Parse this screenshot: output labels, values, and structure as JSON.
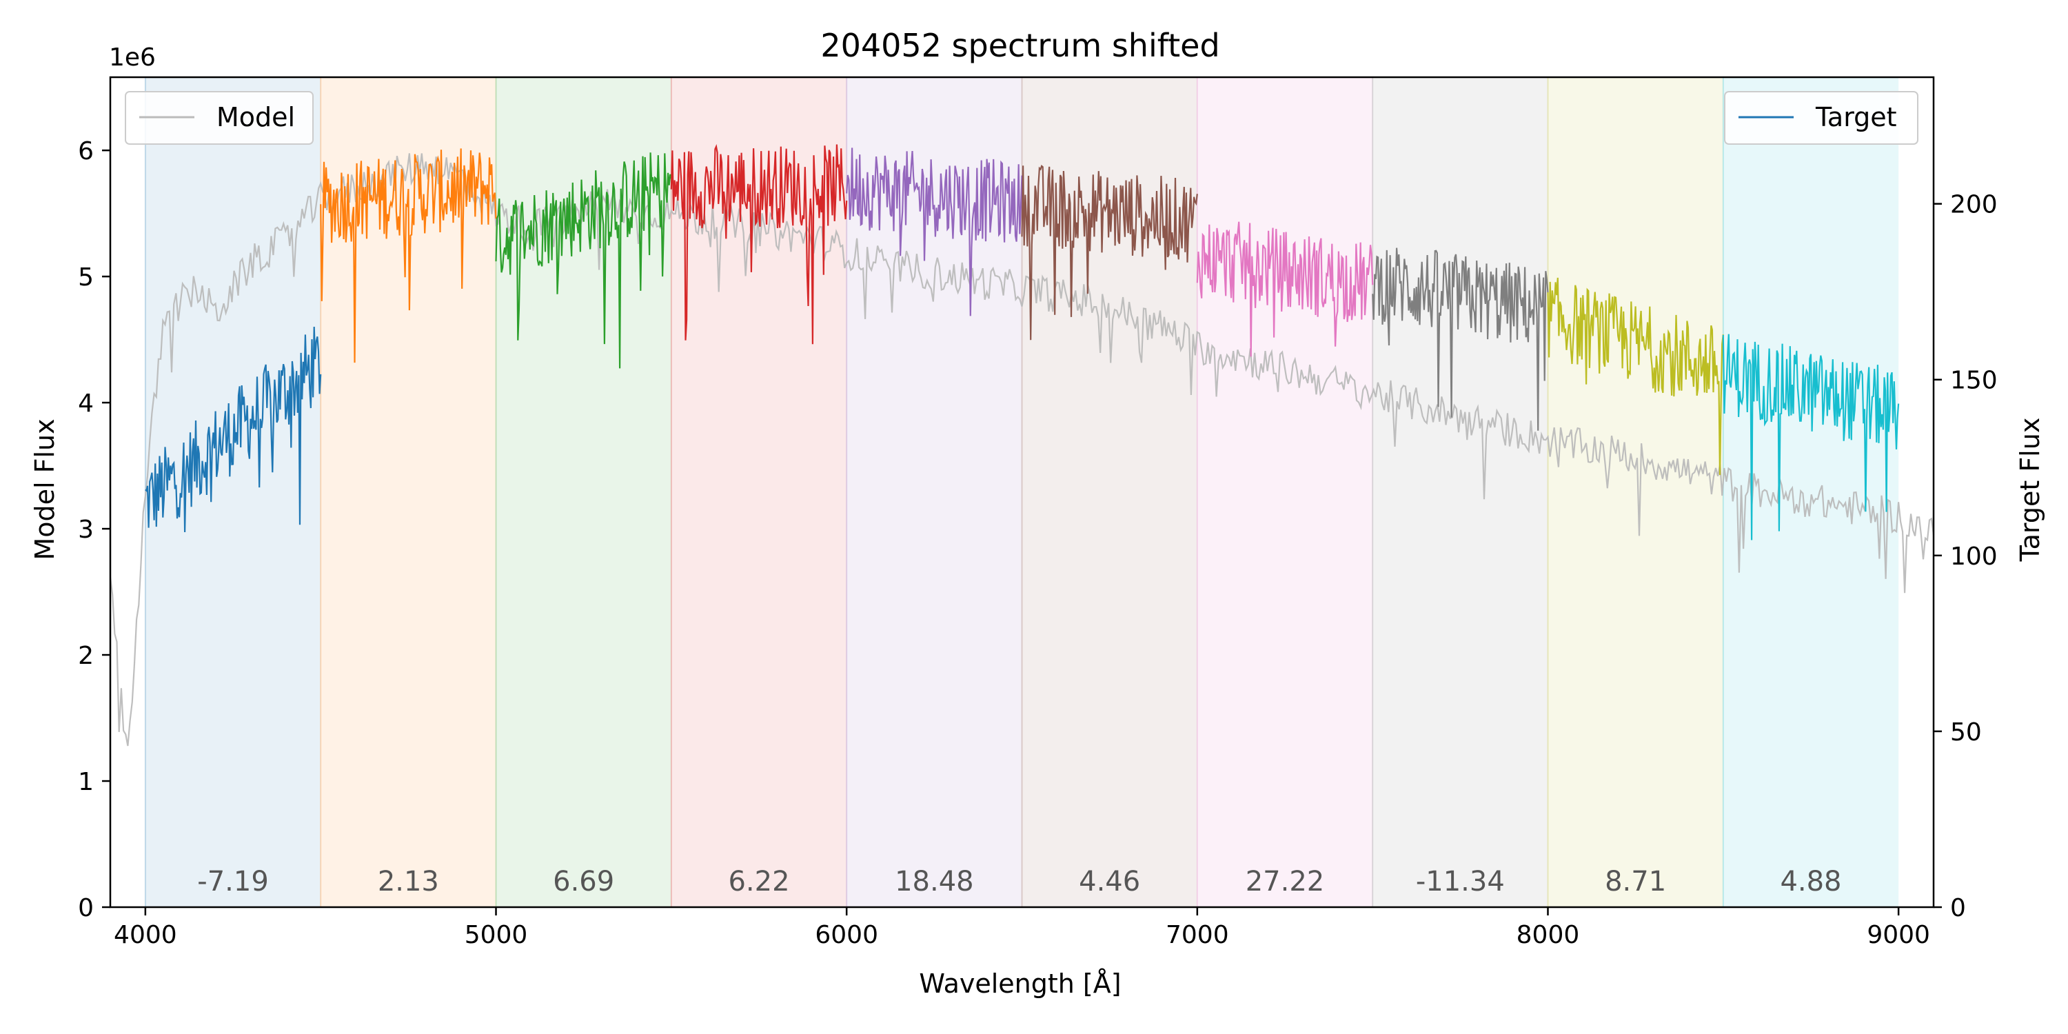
{
  "chart_data": {
    "type": "line",
    "title": "204052 spectrum shifted",
    "xlabel": "Wavelength [Å]",
    "ylabel_left": "Model Flux",
    "ylabel_right": "Target Flux",
    "left_axis_multiplier": "1e6",
    "xlim": [
      3900,
      9100
    ],
    "ylim_left": [
      0,
      6.58
    ],
    "ylim_right": [
      0,
      236
    ],
    "x_ticks": [
      4000,
      5000,
      6000,
      7000,
      8000,
      9000
    ],
    "left_ticks": [
      0,
      1,
      2,
      3,
      4,
      5,
      6
    ],
    "right_ticks": [
      0,
      50,
      100,
      150,
      200
    ],
    "grid": false,
    "legends": {
      "model": {
        "label": "Model",
        "placement": "upper-left",
        "color": "#bbbbbb"
      },
      "target": {
        "label": "Target",
        "placement": "upper-right",
        "color": "#1f77b4"
      }
    },
    "bands": [
      {
        "range": [
          4000,
          4500
        ],
        "label": "-7.19",
        "color": "#1f77b4",
        "target_level": [
          115,
          155
        ]
      },
      {
        "range": [
          4500,
          5000
        ],
        "label": "2.13",
        "color": "#ff7f0e",
        "target_level": [
          200,
          205
        ]
      },
      {
        "range": [
          5000,
          5500
        ],
        "label": "6.69",
        "color": "#2ca02c",
        "target_level": [
          190,
          205
        ]
      },
      {
        "range": [
          5500,
          6000
        ],
        "label": "6.22",
        "color": "#d62728",
        "target_level": [
          205,
          205
        ]
      },
      {
        "range": [
          6000,
          6500
        ],
        "label": "18.48",
        "color": "#9467bd",
        "target_level": [
          205,
          200
        ]
      },
      {
        "range": [
          6500,
          7000
        ],
        "label": "4.46",
        "color": "#8c564b",
        "target_level": [
          200,
          195
        ]
      },
      {
        "range": [
          7000,
          7500
        ],
        "label": "27.22",
        "color": "#e377c2",
        "target_level": [
          185,
          177
        ]
      },
      {
        "range": [
          7500,
          8000
        ],
        "label": "-11.34",
        "color": "#7f7f7f",
        "target_level": [
          178,
          170
        ]
      },
      {
        "range": [
          8000,
          8500
        ],
        "label": "8.71",
        "color": "#bcbd22",
        "target_level": [
          168,
          153
        ]
      },
      {
        "range": [
          8500,
          9000
        ],
        "label": "4.88",
        "color": "#17becf",
        "target_level": [
          152,
          141
        ]
      }
    ],
    "model_series": {
      "name": "Model",
      "color": "#bbbbbb",
      "points": [
        [
          3900,
          2.5
        ],
        [
          3950,
          1.2
        ],
        [
          4000,
          3.3
        ],
        [
          4050,
          4.6
        ],
        [
          4100,
          4.8
        ],
        [
          4150,
          4.9
        ],
        [
          4200,
          4.7
        ],
        [
          4300,
          5.1
        ],
        [
          4400,
          5.3
        ],
        [
          4500,
          5.6
        ],
        [
          4600,
          5.7
        ],
        [
          4700,
          5.8
        ],
        [
          4800,
          5.9
        ],
        [
          4900,
          5.8
        ],
        [
          5000,
          5.5
        ],
        [
          5100,
          5.4
        ],
        [
          5200,
          5.45
        ],
        [
          5300,
          5.6
        ],
        [
          5400,
          5.5
        ],
        [
          5500,
          5.5
        ],
        [
          5600,
          5.45
        ],
        [
          5700,
          5.4
        ],
        [
          5800,
          5.35
        ],
        [
          5900,
          5.3
        ],
        [
          6000,
          5.2
        ],
        [
          6100,
          5.1
        ],
        [
          6200,
          5.05
        ],
        [
          6300,
          5.0
        ],
        [
          6400,
          4.95
        ],
        [
          6500,
          4.9
        ],
        [
          6600,
          4.85
        ],
        [
          6700,
          4.8
        ],
        [
          6800,
          4.7
        ],
        [
          6900,
          4.6
        ],
        [
          7000,
          4.45
        ],
        [
          7200,
          4.3
        ],
        [
          7400,
          4.15
        ],
        [
          7600,
          4.0
        ],
        [
          7800,
          3.85
        ],
        [
          8000,
          3.7
        ],
        [
          8200,
          3.6
        ],
        [
          8400,
          3.45
        ],
        [
          8600,
          3.3
        ],
        [
          8800,
          3.2
        ],
        [
          9000,
          3.1
        ],
        [
          9100,
          2.95
        ]
      ]
    }
  }
}
